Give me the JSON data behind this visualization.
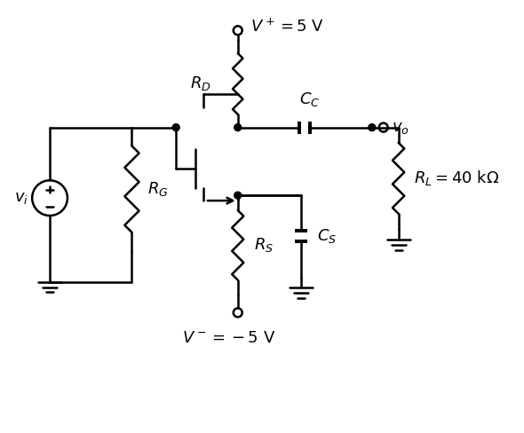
{
  "bg_color": "#ffffff",
  "line_color": "#000000",
  "line_width": 1.8,
  "fig_width": 5.9,
  "fig_height": 4.88,
  "dpi": 100,
  "xlim": [
    0,
    590
  ],
  "ylim": [
    0,
    488
  ],
  "vplus_label": "$V^+ = 5\\ \\mathrm{V}$",
  "vminus_label": "$V^- = -5\\ \\mathrm{V}$",
  "rd_label": "$R_D$",
  "rg_label": "$R_G$",
  "rs_label": "$R_S$",
  "rl_label": "$R_L = 40\\ \\mathrm{k\\Omega}$",
  "cc_label": "$C_C$",
  "cs_label": "$C_S$",
  "vo_label": "$v_o$",
  "vi_label": "$v_i$"
}
